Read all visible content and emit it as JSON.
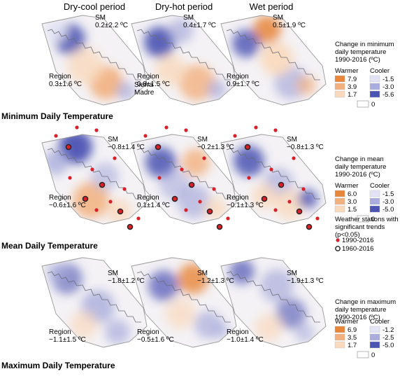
{
  "columns": [
    "Dry-cool period",
    "Dry-hot period",
    "Wet period"
  ],
  "rows": [
    {
      "title": "Minimum Daily Temperature",
      "sm": [
        "SM\n0.2±2.2 ºC",
        "SM\n0.4±1.7 ºC",
        "SM\n0.5±1.9 ºC"
      ],
      "region": [
        "Region\n0.3±1.6 ºC",
        "Region\n0.8±1.5 ºC",
        "Region\n0.9±1.7 ºC"
      ],
      "legend_title": "Change in minimum\ndaily temperature\n1990-2016 (ºC)",
      "warm_values": [
        "7.9",
        "3.9",
        "1.7"
      ],
      "cool_values": [
        "-1.5",
        "-3.0",
        "-5.6"
      ]
    },
    {
      "title": "Mean Daily Temperature",
      "sm": [
        "SM\n−0.8±1.4 ºC",
        "SM\n−0.2±1.3 ºC",
        "SM\n−0.8±1.3 ºC"
      ],
      "region": [
        "Region\n−0.6±1.6 ºC",
        "Region\n0.1±1.4 ºC",
        "Region\n−0.1±1.3 ºC"
      ],
      "legend_title": "Change in mean\ndaily temperature\n1990-2016 (ºC)",
      "warm_values": [
        "6.0",
        "3.0",
        "1.5"
      ],
      "cool_values": [
        "-1.5",
        "-3.0",
        "-5.0"
      ]
    },
    {
      "title": "Maximum Daily Temperature",
      "sm": [
        "SM\n−1.8±1.2 ºC",
        "SM\n−1.2±1.3 ºC",
        "SM\n−1.9±1.3 ºC"
      ],
      "region": [
        "Region\n−1.1±1.5 ºC",
        "Region\n−0.5±1.6 ºC",
        "Region\n−1.0±1.4 ºC"
      ],
      "legend_title": "Change in maximum\ndaily temperature\n1990-2016 (ºC)",
      "warm_values": [
        "6.9",
        "3.5",
        "1.7"
      ],
      "cool_values": [
        "-1.2",
        "-2.5",
        "-5.0"
      ]
    }
  ],
  "sierra_madre_label": "Sierra\nMadre",
  "legend_warmer": "Warmer",
  "legend_cooler": "Cooler",
  "legend_zero": "0",
  "stations_title": "Weather stations with\nsignificant trends\n(p<0.05)",
  "stations_1990": "1990-2016",
  "stations_1960": "1960-2016",
  "colors": {
    "warm": [
      "#e8863a",
      "#f2b07e",
      "#f9d9bd"
    ],
    "cool": [
      "#e2e3f4",
      "#a9acdc",
      "#4b53b3"
    ],
    "station": "#d8202a"
  }
}
